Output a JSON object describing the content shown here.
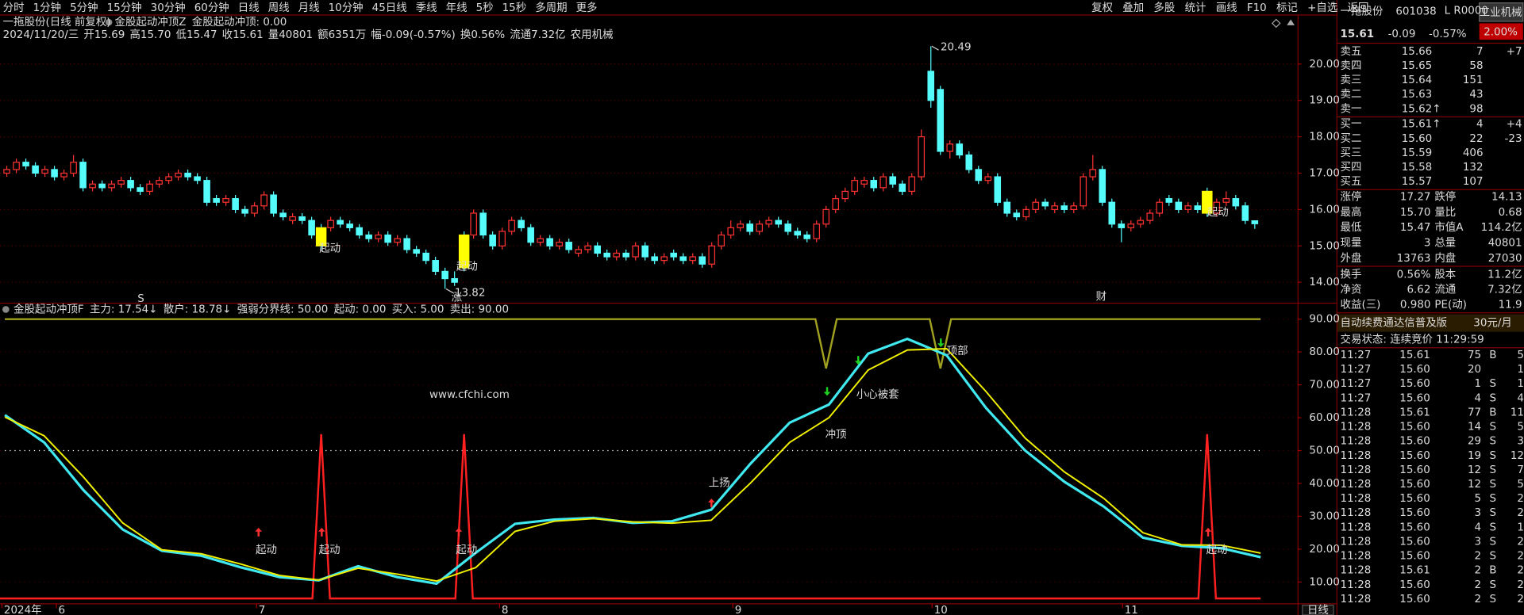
{
  "toolbar": {
    "periods": [
      "分时",
      "1分钟",
      "5分钟",
      "15分钟",
      "30分钟",
      "60分钟",
      "日线",
      "周线",
      "月线",
      "10分钟",
      "45日线",
      "季线",
      "年线",
      "5秒",
      "15秒",
      "多周期",
      "更多"
    ],
    "actions": [
      "复权",
      "叠加",
      "多股",
      "统计",
      "画线",
      "F10",
      "标记",
      "+自选",
      "返回"
    ]
  },
  "info": {
    "title": "一拖股份(日线 前复权)",
    "indicator": "金股起动冲顶Z",
    "indicator_value": "金股起动冲顶: 0.00",
    "fields": [
      "2024/11/20/三",
      "开15.69",
      "高15.70",
      "低15.47",
      "收15.61",
      "量40801",
      "额6351万",
      "幅-0.09(-0.57%)",
      "换0.56%",
      "流通7.32亿",
      "农用机械"
    ]
  },
  "chart_data": [
    {
      "type": "candlestick",
      "candles": [
        [
          17.0,
          17.2,
          16.9,
          17.1
        ],
        [
          17.1,
          17.4,
          17.0,
          17.3
        ],
        [
          17.3,
          17.4,
          17.1,
          17.2
        ],
        [
          17.2,
          17.3,
          16.9,
          17.0
        ],
        [
          17.0,
          17.2,
          16.9,
          17.1
        ],
        [
          17.1,
          17.2,
          16.8,
          16.9
        ],
        [
          16.9,
          17.1,
          16.8,
          17.0
        ],
        [
          17.0,
          17.5,
          16.9,
          17.3
        ],
        [
          17.3,
          17.4,
          16.5,
          16.6
        ],
        [
          16.6,
          16.8,
          16.5,
          16.7
        ],
        [
          16.7,
          16.8,
          16.5,
          16.6
        ],
        [
          16.6,
          16.8,
          16.5,
          16.7
        ],
        [
          16.7,
          16.9,
          16.6,
          16.8
        ],
        [
          16.8,
          16.9,
          16.5,
          16.6
        ],
        [
          16.6,
          16.7,
          16.4,
          16.5
        ],
        [
          16.5,
          16.8,
          16.4,
          16.7
        ],
        [
          16.7,
          16.9,
          16.6,
          16.8
        ],
        [
          16.8,
          17.0,
          16.7,
          16.9
        ],
        [
          16.9,
          17.1,
          16.8,
          17.0
        ],
        [
          17.0,
          17.1,
          16.8,
          16.9
        ],
        [
          16.9,
          17.0,
          16.7,
          16.8
        ],
        [
          16.8,
          16.9,
          16.1,
          16.2
        ],
        [
          16.3,
          16.4,
          16.1,
          16.2
        ],
        [
          16.2,
          16.4,
          16.1,
          16.3
        ],
        [
          16.3,
          16.4,
          15.9,
          16.0
        ],
        [
          16.0,
          16.1,
          15.8,
          15.9
        ],
        [
          15.9,
          16.2,
          15.8,
          16.1
        ],
        [
          16.1,
          16.5,
          16.0,
          16.4
        ],
        [
          16.4,
          16.5,
          15.8,
          15.9
        ],
        [
          15.9,
          16.0,
          15.7,
          15.8
        ],
        [
          15.7,
          15.9,
          15.6,
          15.8
        ],
        [
          15.8,
          15.9,
          15.6,
          15.7
        ],
        [
          15.7,
          15.8,
          15.2,
          15.3
        ],
        [
          15.0,
          15.6,
          14.9,
          15.5
        ],
        [
          15.5,
          15.8,
          15.4,
          15.7
        ],
        [
          15.7,
          15.8,
          15.5,
          15.6
        ],
        [
          15.6,
          15.7,
          15.4,
          15.5
        ],
        [
          15.5,
          15.6,
          15.2,
          15.3
        ],
        [
          15.3,
          15.4,
          15.1,
          15.2
        ],
        [
          15.2,
          15.4,
          15.1,
          15.3
        ],
        [
          15.3,
          15.4,
          15.0,
          15.1
        ],
        [
          15.1,
          15.3,
          15.0,
          15.2
        ],
        [
          15.2,
          15.3,
          14.8,
          14.9
        ],
        [
          14.9,
          15.0,
          14.7,
          14.8
        ],
        [
          14.8,
          14.9,
          14.5,
          14.6
        ],
        [
          14.6,
          14.7,
          14.2,
          14.3
        ],
        [
          14.3,
          14.4,
          13.82,
          14.1
        ],
        [
          14.1,
          14.3,
          13.9,
          14.0
        ],
        [
          14.4,
          15.4,
          14.3,
          15.3
        ],
        [
          15.3,
          16.0,
          15.2,
          15.9
        ],
        [
          15.9,
          16.0,
          15.2,
          15.3
        ],
        [
          15.3,
          15.4,
          14.9,
          15.0
        ],
        [
          15.0,
          15.5,
          14.9,
          15.4
        ],
        [
          15.4,
          15.8,
          15.3,
          15.7
        ],
        [
          15.7,
          15.8,
          15.4,
          15.5
        ],
        [
          15.5,
          15.6,
          15.0,
          15.1
        ],
        [
          15.1,
          15.3,
          15.0,
          15.2
        ],
        [
          15.2,
          15.3,
          14.9,
          15.0
        ],
        [
          15.0,
          15.2,
          14.9,
          15.1
        ],
        [
          15.1,
          15.2,
          14.8,
          14.9
        ],
        [
          14.8,
          15.0,
          14.7,
          14.9
        ],
        [
          14.9,
          15.1,
          14.8,
          15.0
        ],
        [
          15.0,
          15.1,
          14.7,
          14.8
        ],
        [
          14.8,
          14.9,
          14.6,
          14.7
        ],
        [
          14.7,
          14.9,
          14.6,
          14.8
        ],
        [
          14.8,
          14.9,
          14.6,
          14.7
        ],
        [
          14.7,
          15.1,
          14.6,
          15.0
        ],
        [
          15.0,
          15.1,
          14.6,
          14.7
        ],
        [
          14.7,
          14.8,
          14.5,
          14.6
        ],
        [
          14.6,
          14.8,
          14.5,
          14.7
        ],
        [
          14.8,
          14.9,
          14.6,
          14.7
        ],
        [
          14.7,
          14.8,
          14.5,
          14.6
        ],
        [
          14.6,
          14.8,
          14.5,
          14.7
        ],
        [
          14.7,
          14.8,
          14.4,
          14.5
        ],
        [
          14.5,
          15.1,
          14.4,
          15.0
        ],
        [
          15.0,
          15.4,
          14.9,
          15.3
        ],
        [
          15.3,
          15.7,
          15.2,
          15.5
        ],
        [
          15.5,
          15.7,
          15.4,
          15.6
        ],
        [
          15.6,
          15.7,
          15.3,
          15.4
        ],
        [
          15.4,
          15.7,
          15.3,
          15.6
        ],
        [
          15.6,
          15.8,
          15.5,
          15.7
        ],
        [
          15.7,
          15.8,
          15.5,
          15.6
        ],
        [
          15.6,
          15.7,
          15.3,
          15.4
        ],
        [
          15.4,
          15.5,
          15.2,
          15.3
        ],
        [
          15.3,
          15.4,
          15.1,
          15.2
        ],
        [
          15.2,
          15.7,
          15.1,
          15.6
        ],
        [
          15.6,
          16.1,
          15.5,
          16.0
        ],
        [
          16.0,
          16.4,
          15.9,
          16.3
        ],
        [
          16.3,
          16.6,
          16.2,
          16.5
        ],
        [
          16.5,
          16.9,
          16.4,
          16.8
        ],
        [
          16.7,
          16.9,
          16.6,
          16.8
        ],
        [
          16.8,
          16.9,
          16.5,
          16.6
        ],
        [
          16.6,
          17.0,
          16.5,
          16.9
        ],
        [
          16.9,
          17.0,
          16.6,
          16.7
        ],
        [
          16.7,
          16.8,
          16.4,
          16.5
        ],
        [
          16.5,
          17.0,
          16.4,
          16.9
        ],
        [
          16.9,
          18.2,
          16.8,
          18.0
        ],
        [
          19.8,
          20.49,
          18.8,
          19.0
        ],
        [
          19.3,
          19.4,
          17.5,
          17.6
        ],
        [
          17.6,
          17.9,
          17.4,
          17.8
        ],
        [
          17.8,
          17.9,
          17.4,
          17.5
        ],
        [
          17.5,
          17.6,
          17.0,
          17.1
        ],
        [
          17.1,
          17.2,
          16.7,
          16.8
        ],
        [
          16.8,
          17.0,
          16.7,
          16.9
        ],
        [
          16.9,
          17.0,
          16.1,
          16.2
        ],
        [
          16.2,
          16.3,
          15.8,
          15.9
        ],
        [
          15.9,
          16.0,
          15.7,
          15.8
        ],
        [
          15.8,
          16.1,
          15.7,
          16.0
        ],
        [
          16.0,
          16.3,
          15.9,
          16.2
        ],
        [
          16.2,
          16.3,
          16.0,
          16.1
        ],
        [
          16.0,
          16.2,
          15.9,
          16.1
        ],
        [
          16.1,
          16.2,
          15.9,
          16.0
        ],
        [
          16.0,
          16.2,
          15.9,
          16.1
        ],
        [
          16.1,
          17.0,
          16.0,
          16.9
        ],
        [
          16.9,
          17.5,
          16.8,
          17.1
        ],
        [
          17.1,
          17.2,
          16.1,
          16.2
        ],
        [
          16.2,
          16.3,
          15.5,
          15.6
        ],
        [
          15.6,
          15.7,
          15.1,
          15.5
        ],
        [
          15.5,
          15.7,
          15.4,
          15.6
        ],
        [
          15.6,
          15.8,
          15.5,
          15.7
        ],
        [
          15.7,
          16.0,
          15.6,
          15.9
        ],
        [
          15.9,
          16.3,
          15.8,
          16.2
        ],
        [
          16.3,
          16.4,
          16.1,
          16.2
        ],
        [
          16.2,
          16.3,
          15.9,
          16.0
        ],
        [
          16.0,
          16.2,
          15.9,
          16.1
        ],
        [
          16.1,
          16.2,
          15.9,
          16.0
        ],
        [
          16.5,
          16.6,
          15.8,
          15.9
        ],
        [
          15.9,
          16.3,
          15.8,
          16.2
        ],
        [
          16.2,
          16.5,
          16.1,
          16.3
        ],
        [
          16.3,
          16.4,
          16.0,
          16.1
        ],
        [
          16.1,
          16.2,
          15.6,
          15.7
        ],
        [
          15.69,
          15.7,
          15.47,
          15.61
        ]
      ],
      "up_color": "#ff3232",
      "down_color": "#54fcfc",
      "highlight_color": "#ffff00",
      "ylim": [
        13.44,
        21.36
      ],
      "yticks": [
        {
          "value": 14,
          "label": "14.00"
        },
        {
          "value": 15,
          "label": "15.00"
        },
        {
          "value": 16,
          "label": "16.00"
        },
        {
          "value": 17,
          "label": "17.00"
        },
        {
          "value": 18,
          "label": "18.00"
        },
        {
          "value": 19,
          "label": "19.00"
        },
        {
          "value": 20,
          "label": "20.00"
        }
      ],
      "grid": true,
      "annotations": [
        "起动",
        "起动",
        "起动",
        "涨",
        "财",
        "S"
      ]
    },
    {
      "type": "line",
      "title": "金股起动冲顶F",
      "series": [
        {
          "name": "主力: 17.54↓",
          "color": "#40e8f0",
          "values": [
            60.8,
            52.5,
            38,
            26,
            19.5,
            18,
            14.5,
            11.5,
            10.5,
            14.8,
            11.5,
            9.5,
            18.9,
            27.7,
            29,
            29.5,
            28,
            28.5,
            32,
            46,
            58.5,
            64,
            79.5,
            84,
            79,
            63,
            50,
            40.5,
            33,
            23.5,
            21,
            20.3,
            17.54
          ]
        },
        {
          "name": "散户: 18.78↓",
          "color": "#f0f000",
          "values": [
            60.2,
            54.5,
            42,
            28,
            19.8,
            18.6,
            15.5,
            12,
            10.6,
            14.2,
            12.4,
            10.3,
            14.4,
            25.4,
            28.5,
            29.3,
            28.3,
            27.9,
            28.8,
            40.1,
            52.5,
            60,
            74.5,
            80.6,
            81,
            68,
            53.8,
            43.5,
            35.5,
            25,
            21.3,
            21.2,
            18.78
          ]
        }
      ],
      "levels": [
        {
          "name": "强弱分界线: 50.00",
          "value": 50,
          "color": "#ffffff"
        },
        {
          "name": "起动: 0.00",
          "color": "#00d000"
        },
        {
          "name": "买入: 5.00",
          "value": 5,
          "peak": 55,
          "color": "#ff2020"
        },
        {
          "name": "卖出: 90.00",
          "value": 90,
          "dip": 75,
          "color": "#a0a020"
        }
      ],
      "ylim": [
        3.5,
        94.13
      ],
      "yticks": [
        {
          "value": 10,
          "label": "10.00"
        },
        {
          "value": 20,
          "label": "20.00"
        },
        {
          "value": 30,
          "label": "30.00"
        },
        {
          "value": 40,
          "label": "40.00"
        },
        {
          "value": 50,
          "label": "50.00"
        },
        {
          "value": 60,
          "label": "60.00"
        },
        {
          "value": 70,
          "label": "70.00"
        },
        {
          "value": 80,
          "label": "80.00"
        },
        {
          "value": 90,
          "label": "90.00"
        }
      ],
      "grid": true,
      "annotations": [
        "上扬",
        "冲顶",
        "小心被套",
        "顶部",
        "起动",
        "起动",
        "起动",
        "起动"
      ]
    }
  ],
  "x_axis": {
    "labels": [
      "2024年",
      "6",
      "7",
      "8",
      "9",
      "10",
      "11"
    ],
    "period": "日线"
  },
  "watermark": "www.cfchi.com",
  "sidebar": {
    "name": "一拖股份",
    "code": "601038",
    "badge": "L R0000",
    "industry": "工业机械",
    "industry_change": "2.00%",
    "price": "15.61",
    "change": "-0.09",
    "pct": "-0.57%",
    "asks": [
      [
        "卖五",
        "15.66",
        "7",
        "+7"
      ],
      [
        "卖四",
        "15.65",
        "58"
      ],
      [
        "卖三",
        "15.64",
        "151"
      ],
      [
        "卖二",
        "15.63",
        "43"
      ],
      [
        "卖一",
        "15.62↑",
        "98"
      ]
    ],
    "bids": [
      [
        "买一",
        "15.61↑",
        "4",
        "+4"
      ],
      [
        "买二",
        "15.60",
        "22",
        "-23"
      ],
      [
        "买三",
        "15.59",
        "406"
      ],
      [
        "买四",
        "15.58",
        "132"
      ],
      [
        "买五",
        "15.57",
        "107"
      ]
    ],
    "stats": [
      [
        "涨停",
        "17.27",
        "跌停",
        "14.13"
      ],
      [
        "最高",
        "15.70",
        "量比",
        "0.68"
      ],
      [
        "最低",
        "15.47",
        "市值A",
        "114.2亿"
      ],
      [
        "现量",
        "3",
        "总量",
        "40801"
      ],
      [
        "外盘",
        "13763",
        "内盘",
        "27030"
      ],
      [
        "换手",
        "0.56%",
        "股本",
        "11.2亿"
      ],
      [
        "净资",
        "6.62",
        "流通",
        "7.32亿"
      ],
      [
        "收益(三)",
        "0.980",
        "PE(动)",
        "11.9"
      ]
    ],
    "ad": "自动续费通达信普及版",
    "ad_price": "30元/月",
    "status": "交易状态: 连续竞价 11:29:59",
    "ticks": [
      [
        "11:27",
        "15.61",
        "75",
        "B",
        "5"
      ],
      [
        "11:27",
        "15.60",
        "20",
        "1"
      ],
      [
        "11:27",
        "15.60",
        "1",
        "S",
        "1"
      ],
      [
        "11:27",
        "15.60",
        "4",
        "S",
        "4"
      ],
      [
        "11:28",
        "15.61",
        "77",
        "B",
        "11"
      ],
      [
        "11:28",
        "15.60",
        "14",
        "S",
        "5"
      ],
      [
        "11:28",
        "15.60",
        "29",
        "S",
        "3"
      ],
      [
        "11:28",
        "15.60",
        "19",
        "S",
        "12"
      ],
      [
        "11:28",
        "15.60",
        "12",
        "S",
        "7"
      ],
      [
        "11:28",
        "15.60",
        "12",
        "S",
        "5"
      ],
      [
        "11:28",
        "15.60",
        "5",
        "S",
        "2"
      ],
      [
        "11:28",
        "15.60",
        "3",
        "S",
        "2"
      ],
      [
        "11:28",
        "15.60",
        "4",
        "S",
        "1"
      ],
      [
        "11:28",
        "15.60",
        "3",
        "S",
        "2"
      ],
      [
        "11:28",
        "15.60",
        "2",
        "S",
        "2"
      ],
      [
        "11:28",
        "15.61",
        "2",
        "B",
        "2"
      ],
      [
        "11:28",
        "15.60",
        "2",
        "S",
        "2"
      ],
      [
        "11:28",
        "15.60",
        "2",
        "S",
        "2"
      ]
    ]
  }
}
